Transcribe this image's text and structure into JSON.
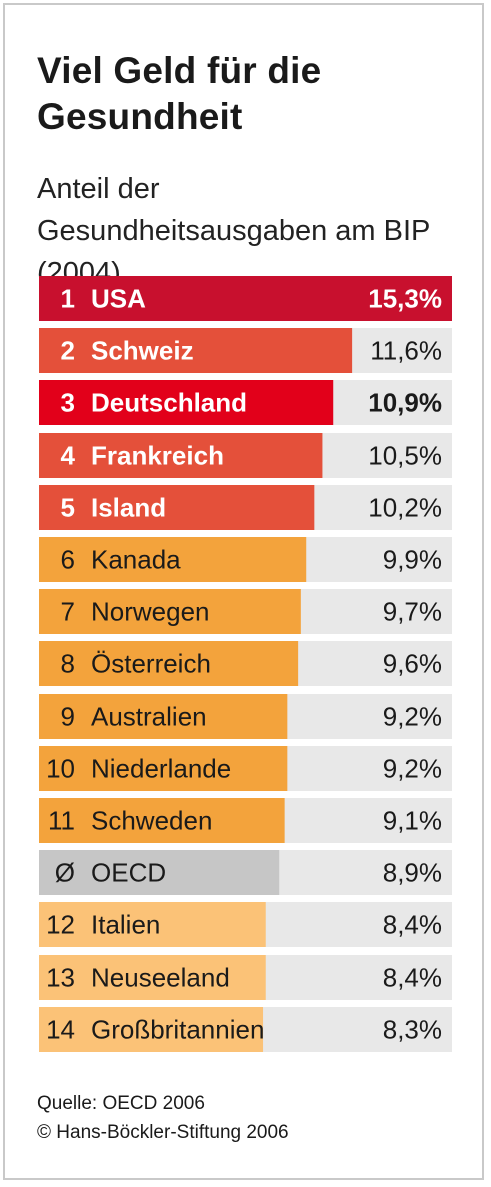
{
  "header": {
    "title": "Viel Geld für die Gesundheit",
    "subtitle": "Anteil der Gesundheitsausgaben am BIP (2004)"
  },
  "footer": {
    "source": "Quelle: OECD 2006",
    "copyright": "© Hans-Böckler-Stiftung 2006"
  },
  "chart_data": {
    "type": "bar",
    "orientation": "horizontal",
    "title": "Viel Geld für die Gesundheit",
    "subtitle": "Anteil der Gesundheitsausgaben am BIP (2004)",
    "unit": "%",
    "xlim": [
      0,
      15.3
    ],
    "grid": false,
    "rows": [
      {
        "rank": "1",
        "country": "USA",
        "value": 15.3,
        "display": "15,3%",
        "color": "#c8102e",
        "bold": true,
        "highlight": "top"
      },
      {
        "rank": "2",
        "country": "Schweiz",
        "value": 11.6,
        "display": "11,6%",
        "color": "#e4503a",
        "bold": true
      },
      {
        "rank": "3",
        "country": "Deutschland",
        "value": 10.9,
        "display": "10,9%",
        "color": "#e2001a",
        "bold": true,
        "value_bold": true
      },
      {
        "rank": "4",
        "country": "Frankreich",
        "value": 10.5,
        "display": "10,5%",
        "color": "#e4503a",
        "bold": true
      },
      {
        "rank": "5",
        "country": "Island",
        "value": 10.2,
        "display": "10,2%",
        "color": "#e4503a",
        "bold": true
      },
      {
        "rank": "6",
        "country": "Kanada",
        "value": 9.9,
        "display": "9,9%",
        "color": "#f3a33c"
      },
      {
        "rank": "7",
        "country": "Norwegen",
        "value": 9.7,
        "display": "9,7%",
        "color": "#f3a33c"
      },
      {
        "rank": "8",
        "country": "Österreich",
        "value": 9.6,
        "display": "9,6%",
        "color": "#f3a33c"
      },
      {
        "rank": "9",
        "country": "Australien",
        "value": 9.2,
        "display": "9,2%",
        "color": "#f3a33c"
      },
      {
        "rank": "10",
        "country": "Niederlande",
        "value": 9.2,
        "display": "9,2%",
        "color": "#f3a33c"
      },
      {
        "rank": "11",
        "country": "Schweden",
        "value": 9.1,
        "display": "9,1%",
        "color": "#f3a33c"
      },
      {
        "rank": "Ø",
        "country": "OECD",
        "value": 8.9,
        "display": "8,9%",
        "color": "#c6c6c6"
      },
      {
        "rank": "12",
        "country": "Italien",
        "value": 8.4,
        "display": "8,4%",
        "color": "#fbc277"
      },
      {
        "rank": "13",
        "country": "Neuseeland",
        "value": 8.4,
        "display": "8,4%",
        "color": "#fbc277"
      },
      {
        "rank": "14",
        "country": "Großbritannien",
        "value": 8.3,
        "display": "8,3%",
        "color": "#fbc277"
      }
    ],
    "track_color": "#e8e8e8"
  }
}
